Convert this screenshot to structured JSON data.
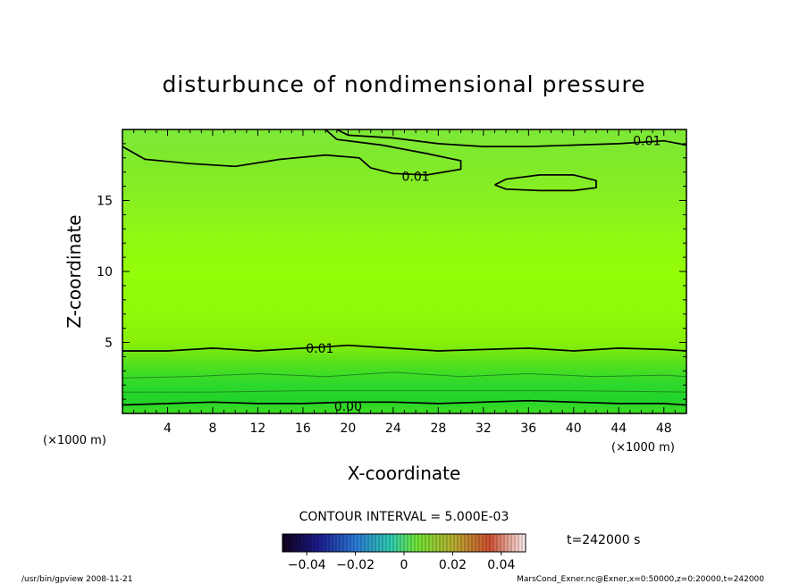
{
  "chart_data": {
    "type": "heatmap",
    "title": "disturbunce of nondimensional pressure",
    "xlabel": "X-coordinate",
    "ylabel": "Z-coordinate",
    "x_unit": "(×1000 m)",
    "y_unit": "(×1000 m)",
    "xlim": [
      0,
      50
    ],
    "ylim": [
      0,
      20
    ],
    "x_ticks": [
      4,
      8,
      12,
      16,
      20,
      24,
      28,
      32,
      36,
      40,
      44,
      48
    ],
    "y_ticks": [
      5,
      10,
      15
    ],
    "contour_interval_text": "CONTOUR INTERVAL = 5.000E-03",
    "time_text": "t=242000 s",
    "colorbar": {
      "min": -0.05,
      "max": 0.05,
      "tick_values": [
        -0.04,
        -0.02,
        0,
        0.02,
        0.04
      ],
      "tick_labels": [
        "−0.04",
        "−0.02",
        "0",
        "0.02",
        "0.04"
      ]
    },
    "contours": [
      {
        "level": 0.0,
        "label": "0.00",
        "label_x": 20,
        "label_z": 0.5,
        "points": [
          [
            0,
            0.6
          ],
          [
            4,
            0.7
          ],
          [
            8,
            0.8
          ],
          [
            12,
            0.7
          ],
          [
            16,
            0.7
          ],
          [
            20,
            0.8
          ],
          [
            24,
            0.8
          ],
          [
            28,
            0.7
          ],
          [
            32,
            0.8
          ],
          [
            36,
            0.9
          ],
          [
            40,
            0.8
          ],
          [
            44,
            0.7
          ],
          [
            48,
            0.7
          ],
          [
            50,
            0.6
          ]
        ]
      },
      {
        "level": 0.005,
        "label": "",
        "label_x": null,
        "label_z": null,
        "points": [
          [
            0,
            1.5
          ],
          [
            8,
            1.5
          ],
          [
            16,
            1.6
          ],
          [
            24,
            1.6
          ],
          [
            32,
            1.6
          ],
          [
            40,
            1.6
          ],
          [
            50,
            1.5
          ]
        ]
      },
      {
        "level": 0.005,
        "label": "",
        "label_x": null,
        "label_z": null,
        "points": [
          [
            0,
            2.5
          ],
          [
            6,
            2.6
          ],
          [
            12,
            2.8
          ],
          [
            18,
            2.6
          ],
          [
            24,
            2.9
          ],
          [
            30,
            2.6
          ],
          [
            36,
            2.8
          ],
          [
            42,
            2.6
          ],
          [
            48,
            2.7
          ],
          [
            50,
            2.6
          ]
        ]
      },
      {
        "level": 0.01,
        "label": "0.01",
        "label_x": 17.5,
        "label_z": 4.6,
        "points": [
          [
            0,
            4.4
          ],
          [
            4,
            4.4
          ],
          [
            8,
            4.6
          ],
          [
            12,
            4.4
          ],
          [
            16,
            4.6
          ],
          [
            20,
            4.8
          ],
          [
            24,
            4.6
          ],
          [
            28,
            4.4
          ],
          [
            32,
            4.5
          ],
          [
            36,
            4.6
          ],
          [
            40,
            4.4
          ],
          [
            44,
            4.6
          ],
          [
            48,
            4.5
          ],
          [
            50,
            4.4
          ]
        ]
      },
      {
        "level": 0.01,
        "label": "0.01",
        "label_x": 26,
        "label_z": 16.7,
        "points": [
          [
            0,
            18.8
          ],
          [
            2,
            17.9
          ],
          [
            6,
            17.6
          ],
          [
            10,
            17.4
          ],
          [
            14,
            17.9
          ],
          [
            18,
            18.2
          ],
          [
            21,
            18.0
          ],
          [
            22,
            17.3
          ],
          [
            24,
            16.9
          ],
          [
            27,
            16.8
          ],
          [
            30,
            17.2
          ],
          [
            30,
            17.8
          ],
          [
            27,
            18.3
          ],
          [
            23,
            18.9
          ],
          [
            19,
            19.3
          ],
          [
            18,
            20.0
          ]
        ]
      },
      {
        "level": 0.01,
        "label": "0.01",
        "label_x": 46.5,
        "label_z": 19.2,
        "points": [
          [
            19,
            20.0
          ],
          [
            20,
            19.6
          ],
          [
            24,
            19.4
          ],
          [
            28,
            19.0
          ],
          [
            32,
            18.8
          ],
          [
            36,
            18.8
          ],
          [
            40,
            18.9
          ],
          [
            44,
            19.0
          ],
          [
            48,
            19.2
          ],
          [
            50,
            18.9
          ]
        ]
      },
      {
        "level": 0.01,
        "label": "",
        "label_x": null,
        "label_z": null,
        "points": [
          [
            33,
            16.1
          ],
          [
            34,
            16.5
          ],
          [
            37,
            16.8
          ],
          [
            40,
            16.8
          ],
          [
            42,
            16.4
          ],
          [
            42,
            15.9
          ],
          [
            40,
            15.7
          ],
          [
            37,
            15.7
          ],
          [
            34,
            15.8
          ],
          [
            33,
            16.1
          ]
        ]
      }
    ],
    "fill_bands": [
      {
        "z": 20.0,
        "color": "#7ee838"
      },
      {
        "z": 17.5,
        "color": "#80ea2a"
      },
      {
        "z": 15.0,
        "color": "#88f020"
      },
      {
        "z": 12.5,
        "color": "#90f811"
      },
      {
        "z": 10.0,
        "color": "#94fd08"
      },
      {
        "z": 7.5,
        "color": "#90fb08"
      },
      {
        "z": 5.0,
        "color": "#88f008"
      },
      {
        "z": 4.0,
        "color": "#66e416"
      },
      {
        "z": 3.0,
        "color": "#45de22"
      },
      {
        "z": 2.0,
        "color": "#2dd82c"
      },
      {
        "z": 1.0,
        "color": "#22d42a"
      },
      {
        "z": 0.0,
        "color": "#3fdc22"
      }
    ]
  },
  "footer": {
    "left": "/usr/bin/gpview   2008-11-21",
    "right": "MarsCond_Exner.nc@Exner,x=0:50000,z=0:20000,t=242000"
  }
}
